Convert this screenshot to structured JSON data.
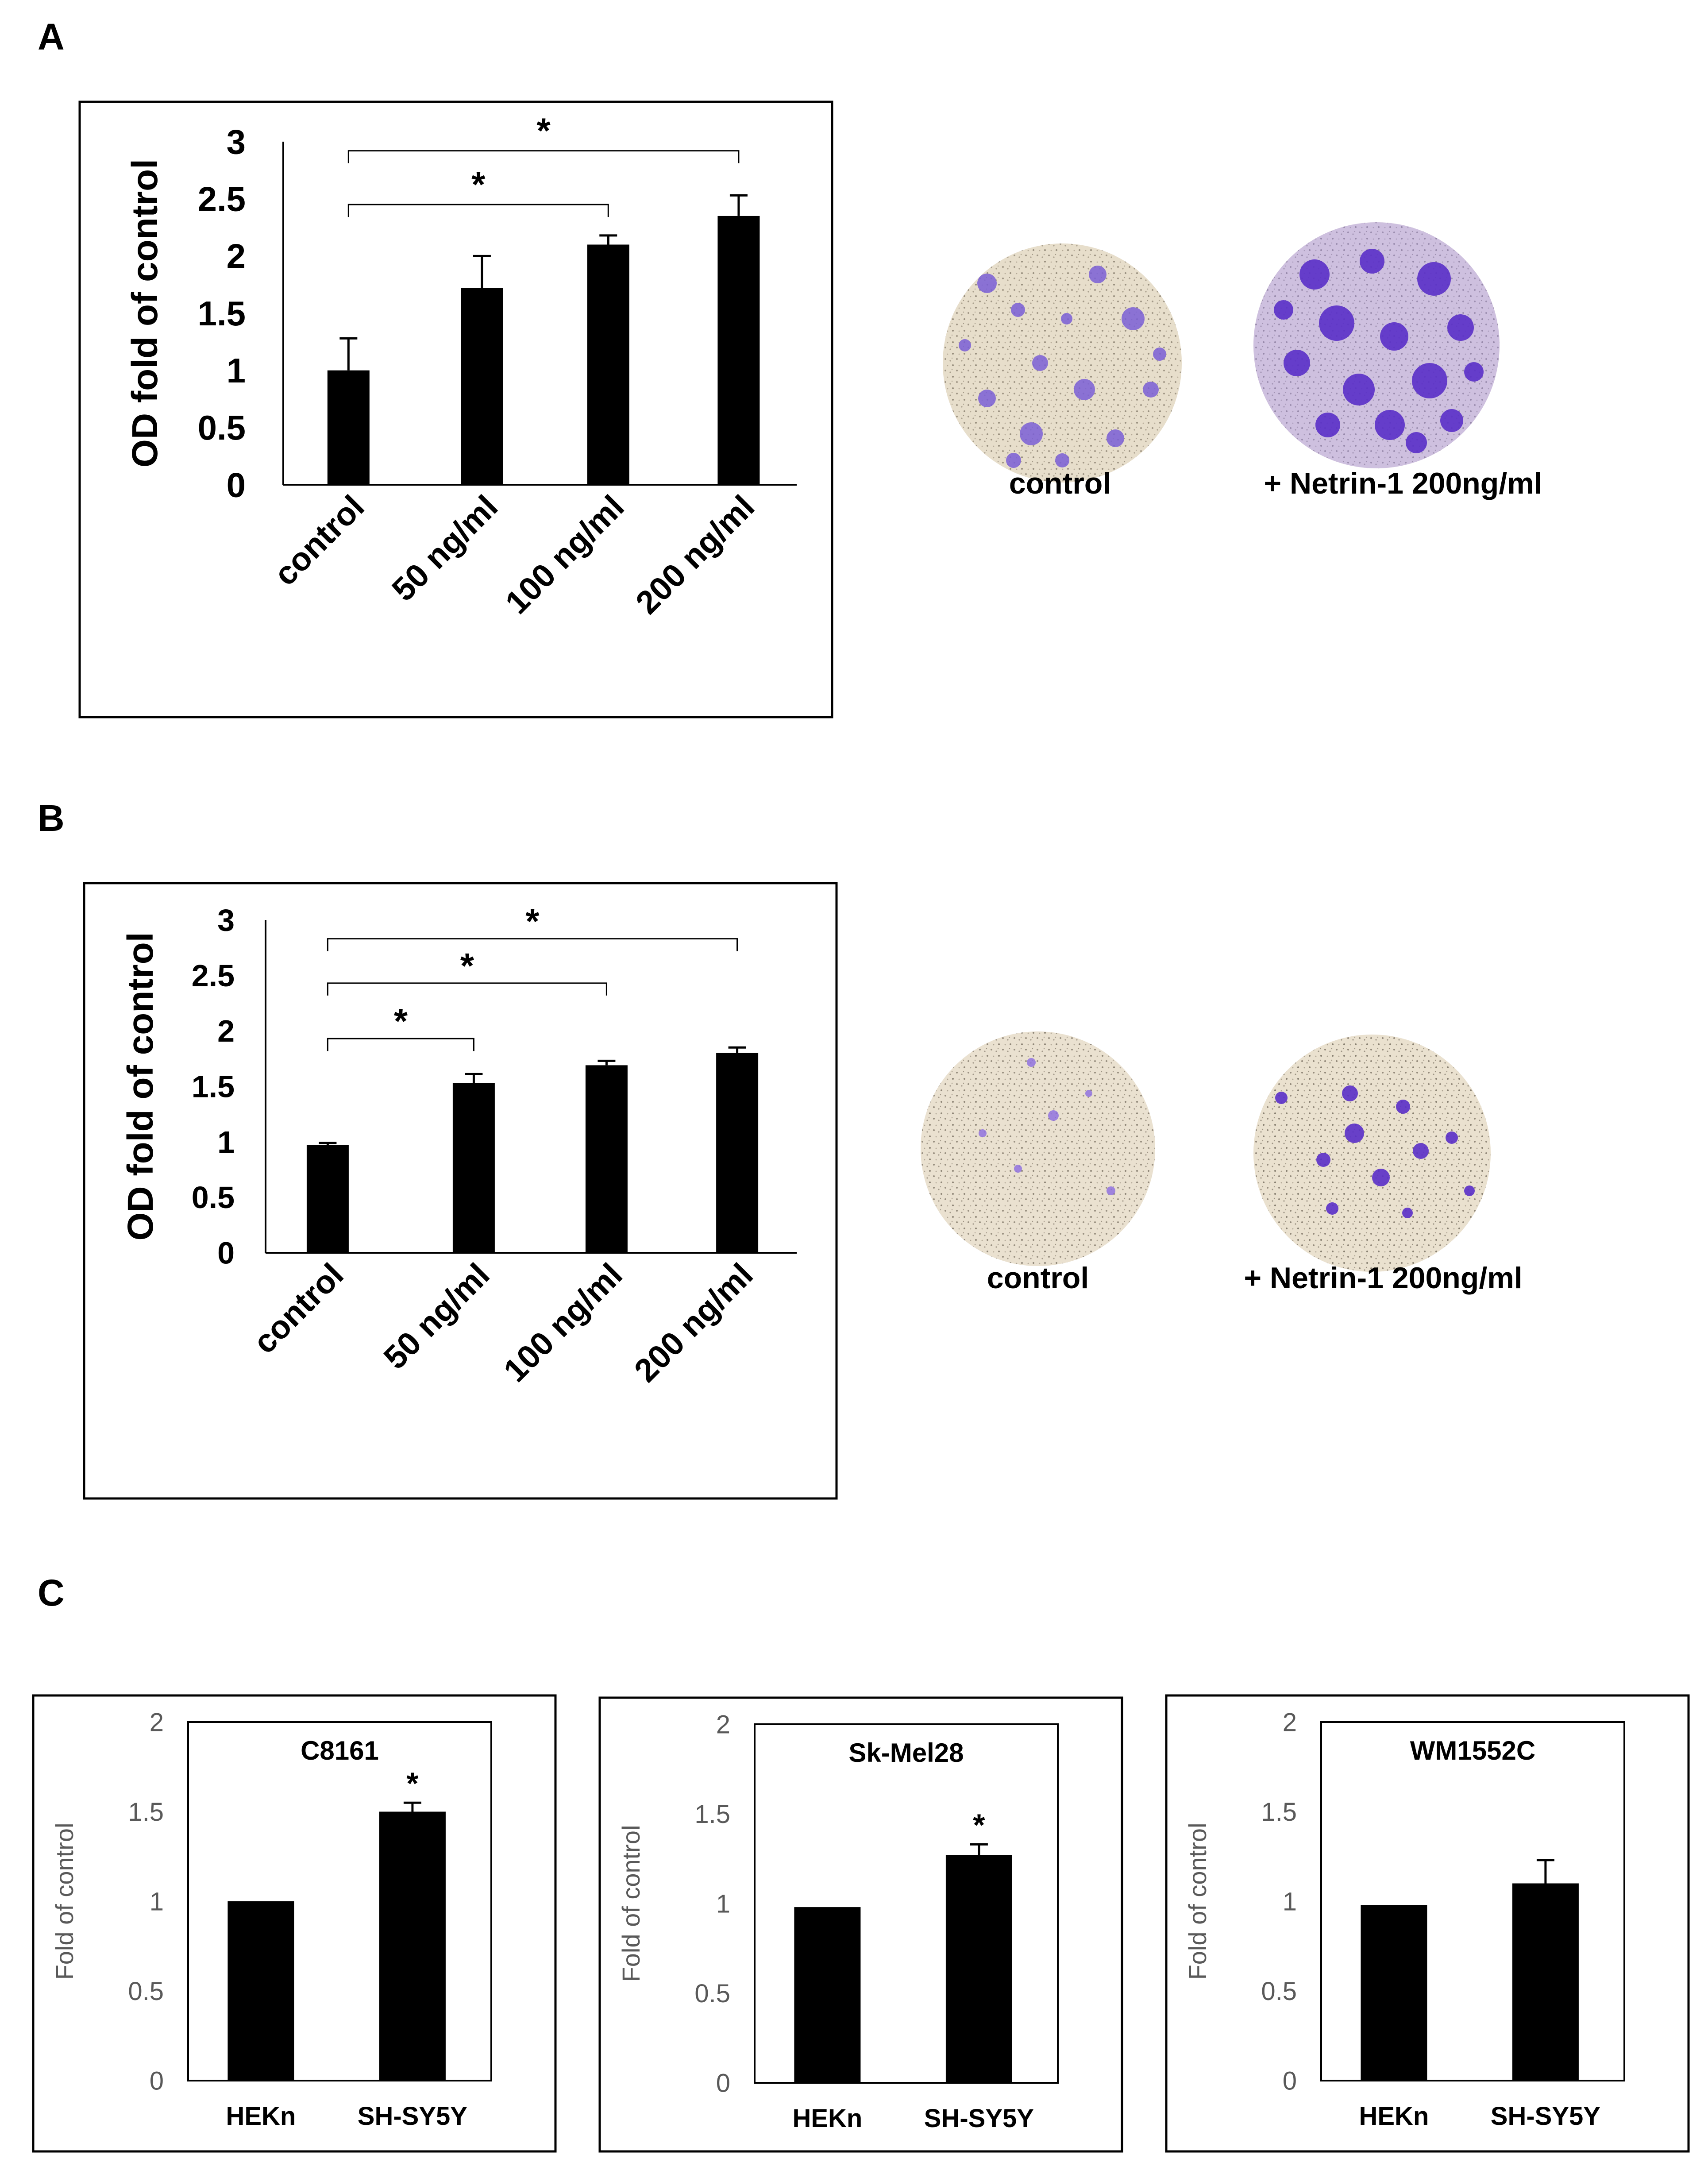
{
  "panels": {
    "A": {
      "letter": "A",
      "photo_labels": [
        "control",
        "+ Netrin-1 200ng/ml"
      ]
    },
    "B": {
      "letter": "B",
      "photo_labels": [
        "control",
        "+ Netrin-1 200ng/ml"
      ]
    },
    "C": {
      "letter": "C"
    }
  },
  "chart_data": [
    {
      "id": "A",
      "type": "bar",
      "ylabel": "OD fold of control",
      "categories": [
        "control",
        "50 ng/ml",
        "100 ng/ml",
        "200 ng/ml"
      ],
      "values": [
        1.0,
        1.72,
        2.1,
        2.35
      ],
      "errors": [
        0.28,
        0.28,
        0.08,
        0.18
      ],
      "ylim": [
        0,
        3
      ],
      "yticks": [
        0,
        0.5,
        1,
        1.5,
        2,
        2.5,
        3
      ],
      "significance": [
        {
          "from": 0,
          "to": 3,
          "level": 2.92,
          "label": "*"
        },
        {
          "from": 0,
          "to": 2,
          "level": 2.45,
          "label": "*"
        }
      ]
    },
    {
      "id": "B",
      "type": "bar",
      "ylabel": "OD fold of control",
      "categories": [
        "control",
        "50 ng/ml",
        "100 ng/ml",
        "200 ng/ml"
      ],
      "values": [
        0.97,
        1.53,
        1.69,
        1.8
      ],
      "errors": [
        0.02,
        0.08,
        0.04,
        0.05
      ],
      "ylim": [
        0,
        3
      ],
      "yticks": [
        0,
        0.5,
        1,
        1.5,
        2,
        2.5,
        3
      ],
      "significance": [
        {
          "from": 0,
          "to": 3,
          "level": 2.83,
          "label": "*"
        },
        {
          "from": 0,
          "to": 2,
          "level": 2.43,
          "label": "*"
        },
        {
          "from": 0,
          "to": 1,
          "level": 1.93,
          "label": "*"
        }
      ]
    },
    {
      "id": "C1",
      "type": "bar",
      "title": "C8161",
      "ylabel": "Fold of control",
      "categories": [
        "HEKn",
        "SH-SY5Y"
      ],
      "values": [
        1.0,
        1.5
      ],
      "errors": [
        0.0,
        0.05
      ],
      "ylim": [
        0,
        2
      ],
      "yticks": [
        0,
        0.5,
        1,
        1.5,
        2
      ],
      "stars": [
        "",
        "*"
      ]
    },
    {
      "id": "C2",
      "type": "bar",
      "title": "Sk-Mel28",
      "ylabel": "Fold of control",
      "categories": [
        "HEKn",
        "SH-SY5Y"
      ],
      "values": [
        0.98,
        1.27
      ],
      "errors": [
        0.0,
        0.06
      ],
      "ylim": [
        0,
        2
      ],
      "yticks": [
        0,
        0.5,
        1,
        1.5,
        2
      ],
      "stars": [
        "",
        "*"
      ]
    },
    {
      "id": "C3",
      "type": "bar",
      "title": "WM1552C",
      "ylabel": "Fold of control",
      "categories": [
        "HEKn",
        "SH-SY5Y"
      ],
      "values": [
        0.98,
        1.1
      ],
      "errors": [
        0.0,
        0.13
      ],
      "ylim": [
        0,
        2
      ],
      "yticks": [
        0,
        0.5,
        1,
        1.5,
        2
      ],
      "stars": [
        "",
        ""
      ]
    }
  ]
}
